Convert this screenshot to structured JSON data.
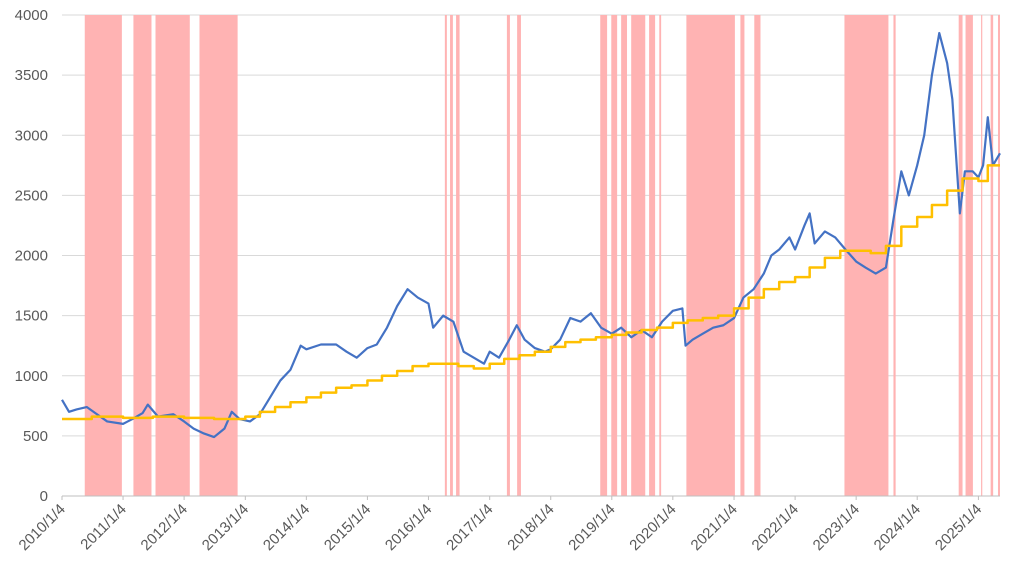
{
  "chart_data": {
    "type": "line",
    "xlim": [
      "2010/1/4",
      "2025/5/13"
    ],
    "xticks": [
      "2010/1/4",
      "2011/1/4",
      "2012/1/4",
      "2013/1/4",
      "2014/1/4",
      "2015/1/4",
      "2016/1/4",
      "2017/1/4",
      "2018/1/4",
      "2019/1/4",
      "2020/1/4",
      "2021/1/4",
      "2022/1/4",
      "2023/1/4",
      "2024/1/4",
      "2025/1/4"
    ],
    "ylim": [
      0,
      4000
    ],
    "yticks": [
      0,
      500,
      1000,
      1500,
      2000,
      2500,
      3000,
      3500,
      4000
    ],
    "grid": true,
    "shade_color": "#ffb3b3",
    "shaded_periods": [
      {
        "start": "2010/5/20",
        "end": "2010/12/28"
      },
      {
        "start": "2011/3/7",
        "end": "2011/6/23"
      },
      {
        "start": "2011/7/17",
        "end": "2012/2/7"
      },
      {
        "start": "2012/4/5",
        "end": "2012/11/19"
      },
      {
        "start": "2016/4/11",
        "end": "2016/4/23"
      },
      {
        "start": "2016/5/12",
        "end": "2016/5/29"
      },
      {
        "start": "2016/6/17",
        "end": "2016/7/8"
      },
      {
        "start": "2017/4/17",
        "end": "2017/5/5"
      },
      {
        "start": "2017/6/17",
        "end": "2017/7/10"
      },
      {
        "start": "2018/10/27",
        "end": "2018/12/7"
      },
      {
        "start": "2019/1/1",
        "end": "2019/2/5"
      },
      {
        "start": "2019/3/1",
        "end": "2019/4/5"
      },
      {
        "start": "2019/4/30",
        "end": "2019/7/23"
      },
      {
        "start": "2019/8/15",
        "end": "2019/9/20"
      },
      {
        "start": "2019/10/15",
        "end": "2019/10/26"
      },
      {
        "start": "2020/3/25",
        "end": "2021/1/9"
      },
      {
        "start": "2021/2/11",
        "end": "2021/3/7"
      },
      {
        "start": "2021/5/5",
        "end": "2021/6/11"
      },
      {
        "start": "2022/10/26",
        "end": "2023/7/16"
      },
      {
        "start": "2023/8/15",
        "end": "2023/8/28"
      },
      {
        "start": "2024/9/8",
        "end": "2024/10/1"
      },
      {
        "start": "2024/10/19",
        "end": "2024/12/2"
      },
      {
        "start": "2025/1/20",
        "end": "2025/1/27"
      },
      {
        "start": "2025/3/18",
        "end": "2025/4/2"
      },
      {
        "start": "2025/5/1",
        "end": "2025/5/13"
      }
    ],
    "series": [
      {
        "color": "#4472c4",
        "style": "line",
        "x": [
          "2010/1/4",
          "2010/2/15",
          "2010/4/1",
          "2010/6/1",
          "2010/8/1",
          "2010/10/1",
          "2011/1/4",
          "2011/3/1",
          "2011/5/1",
          "2011/6/1",
          "2011/8/1",
          "2011/11/1",
          "2012/1/4",
          "2012/3/1",
          "2012/5/1",
          "2012/7/1",
          "2012/9/1",
          "2012/10/15",
          "2012/12/1",
          "2013/2/1",
          "2013/4/1",
          "2013/6/1",
          "2013/8/1",
          "2013/10/1",
          "2013/12/1",
          "2014/1/4",
          "2014/4/1",
          "2014/7/1",
          "2014/9/1",
          "2014/11/1",
          "2015/1/4",
          "2015/3/1",
          "2015/5/1",
          "2015/7/1",
          "2015/9/1",
          "2015/11/1",
          "2016/1/4",
          "2016/2/1",
          "2016/4/1",
          "2016/6/1",
          "2016/8/1",
          "2016/10/1",
          "2016/12/1",
          "2017/1/4",
          "2017/3/1",
          "2017/5/1",
          "2017/6/15",
          "2017/8/1",
          "2017/10/1",
          "2017/12/1",
          "2018/1/4",
          "2018/3/1",
          "2018/5/1",
          "2018/7/1",
          "2018/9/1",
          "2018/11/1",
          "2019/1/4",
          "2019/3/1",
          "2019/5/1",
          "2019/7/1",
          "2019/9/1",
          "2019/11/1",
          "2020/1/4",
          "2020/3/1",
          "2020/3/20",
          "2020/5/1",
          "2020/7/1",
          "2020/9/1",
          "2020/11/1",
          "2021/1/4",
          "2021/3/1",
          "2021/5/1",
          "2021/7/1",
          "2021/8/15",
          "2021/10/1",
          "2021/12/1",
          "2022/1/4",
          "2022/3/1",
          "2022/4/1",
          "2022/5/1",
          "2022/7/1",
          "2022/9/1",
          "2022/11/1",
          "2023/1/4",
          "2023/3/1",
          "2023/5/1",
          "2023/7/1",
          "2023/8/15",
          "2023/10/1",
          "2023/11/15",
          "2024/1/4",
          "2024/2/15",
          "2024/4/1",
          "2024/5/15",
          "2024/7/1",
          "2024/8/1",
          "2024/9/15",
          "2024/10/15",
          "2024/12/1",
          "2025/1/4",
          "2025/2/1",
          "2025/3/1",
          "2025/4/1",
          "2025/5/13"
        ],
        "values": [
          800,
          700,
          720,
          740,
          680,
          620,
          600,
          640,
          690,
          760,
          660,
          680,
          620,
          560,
          520,
          490,
          560,
          700,
          640,
          620,
          680,
          820,
          960,
          1050,
          1250,
          1220,
          1260,
          1260,
          1200,
          1150,
          1230,
          1260,
          1400,
          1580,
          1720,
          1650,
          1600,
          1400,
          1500,
          1450,
          1200,
          1150,
          1100,
          1200,
          1150,
          1300,
          1420,
          1300,
          1230,
          1200,
          1220,
          1300,
          1480,
          1450,
          1520,
          1400,
          1350,
          1400,
          1320,
          1380,
          1320,
          1450,
          1540,
          1560,
          1250,
          1300,
          1350,
          1400,
          1420,
          1480,
          1650,
          1720,
          1850,
          2000,
          2050,
          2150,
          2050,
          2250,
          2350,
          2100,
          2200,
          2150,
          2050,
          1950,
          1900,
          1850,
          1900,
          2300,
          2700,
          2500,
          2750,
          3000,
          3500,
          3850,
          3600,
          3300,
          2350,
          2700,
          2700,
          2650,
          2750,
          3150,
          2750,
          2850
        ]
      },
      {
        "color": "#ffc000",
        "style": "step",
        "x": [
          "2010/1/4",
          "2010/7/1",
          "2011/1/4",
          "2011/7/1",
          "2012/1/4",
          "2012/7/1",
          "2013/1/4",
          "2013/4/1",
          "2013/7/1",
          "2013/10/1",
          "2014/1/4",
          "2014/4/1",
          "2014/7/1",
          "2014/10/1",
          "2015/1/4",
          "2015/4/1",
          "2015/7/1",
          "2015/10/1",
          "2016/1/4",
          "2016/4/1",
          "2016/7/1",
          "2016/10/1",
          "2017/1/4",
          "2017/4/1",
          "2017/7/1",
          "2017/10/1",
          "2018/1/4",
          "2018/4/1",
          "2018/7/1",
          "2018/10/1",
          "2019/1/4",
          "2019/4/1",
          "2019/7/1",
          "2019/10/1",
          "2020/1/4",
          "2020/4/1",
          "2020/7/1",
          "2020/10/1",
          "2021/1/4",
          "2021/4/1",
          "2021/7/1",
          "2021/10/1",
          "2022/1/4",
          "2022/4/1",
          "2022/7/1",
          "2022/10/1",
          "2023/1/4",
          "2023/4/1",
          "2023/7/1",
          "2023/10/1",
          "2024/1/4",
          "2024/4/1",
          "2024/7/1",
          "2024/10/1",
          "2025/1/4",
          "2025/3/1"
        ],
        "values": [
          640,
          660,
          650,
          660,
          650,
          640,
          660,
          700,
          740,
          780,
          820,
          860,
          900,
          920,
          960,
          1000,
          1040,
          1080,
          1100,
          1100,
          1080,
          1060,
          1100,
          1140,
          1170,
          1200,
          1240,
          1280,
          1300,
          1320,
          1340,
          1360,
          1380,
          1400,
          1440,
          1460,
          1480,
          1500,
          1560,
          1650,
          1720,
          1780,
          1820,
          1900,
          1980,
          2040,
          2040,
          2020,
          2080,
          2240,
          2320,
          2420,
          2540,
          2640,
          2620,
          2750
        ]
      }
    ]
  }
}
